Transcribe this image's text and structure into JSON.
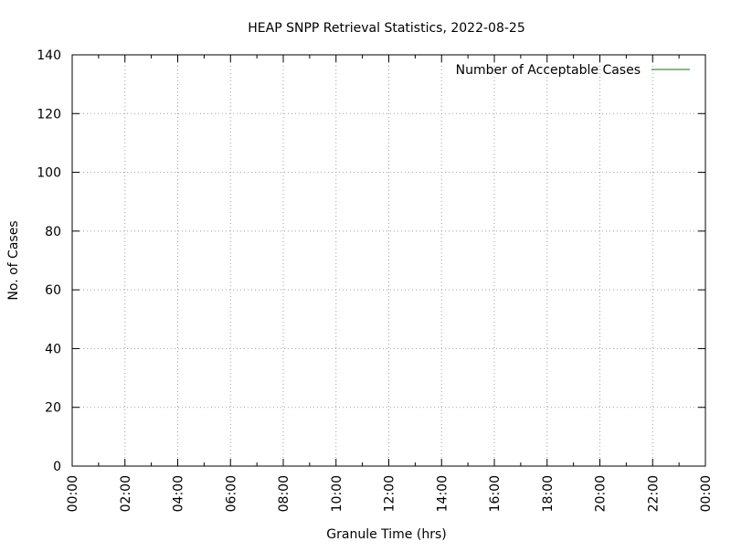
{
  "chart_data": {
    "type": "line",
    "title": "HEAP SNPP Retrieval Statistics, 2022-08-25",
    "xlabel": "Granule Time (hrs)",
    "ylabel": "No. of Cases",
    "x_tick_labels": [
      "00:00",
      "02:00",
      "04:00",
      "06:00",
      "08:00",
      "10:00",
      "12:00",
      "14:00",
      "16:00",
      "18:00",
      "20:00",
      "22:00",
      "00:00"
    ],
    "x_range_hours": [
      0,
      24
    ],
    "y_ticks": [
      0,
      20,
      40,
      60,
      80,
      100,
      120,
      140
    ],
    "ylim": [
      0,
      140
    ],
    "grid": true,
    "legend_position": "top-right",
    "series": [
      {
        "name": "Number of Acceptable Cases",
        "color": "#008000",
        "points": []
      }
    ]
  }
}
